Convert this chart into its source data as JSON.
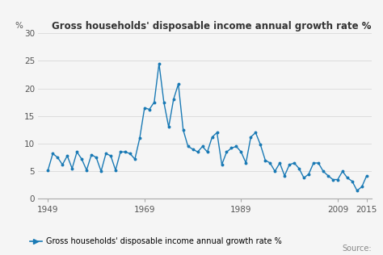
{
  "title": "Gross households' disposable income annual growth rate %",
  "ylabel_top": "%",
  "legend_label": "Gross households' disposable income annual growth rate %",
  "source_text": "Source:",
  "line_color": "#1a7ab5",
  "marker_color": "#1a7ab5",
  "background_color": "#f5f5f5",
  "grid_color": "#dddddd",
  "ylim": [
    0,
    30
  ],
  "yticks": [
    0,
    5,
    10,
    15,
    20,
    25,
    30
  ],
  "xticks": [
    1949,
    1969,
    1989,
    2009,
    2015
  ],
  "years": [
    1949,
    1950,
    1951,
    1952,
    1953,
    1954,
    1955,
    1956,
    1957,
    1958,
    1959,
    1960,
    1961,
    1962,
    1963,
    1964,
    1965,
    1966,
    1967,
    1968,
    1969,
    1970,
    1971,
    1972,
    1973,
    1974,
    1975,
    1976,
    1977,
    1978,
    1979,
    1980,
    1981,
    1982,
    1983,
    1984,
    1985,
    1986,
    1987,
    1988,
    1989,
    1990,
    1991,
    1992,
    1993,
    1994,
    1995,
    1996,
    1997,
    1998,
    1999,
    2000,
    2001,
    2002,
    2003,
    2004,
    2005,
    2006,
    2007,
    2008,
    2009,
    2010,
    2011,
    2012,
    2013,
    2014,
    2015
  ],
  "values": [
    5.2,
    8.2,
    7.5,
    6.2,
    7.8,
    5.5,
    8.5,
    7.2,
    5.2,
    8.0,
    7.5,
    5.0,
    8.2,
    7.8,
    5.2,
    8.5,
    8.5,
    8.2,
    7.2,
    11.0,
    16.5,
    16.2,
    17.5,
    24.5,
    17.5,
    13.0,
    18.0,
    20.8,
    12.5,
    9.5,
    9.0,
    8.5,
    9.5,
    8.5,
    11.2,
    12.0,
    6.2,
    8.5,
    9.2,
    9.5,
    8.5,
    6.5,
    11.2,
    12.0,
    9.8,
    7.0,
    6.5,
    5.0,
    6.5,
    4.2,
    6.2,
    6.5,
    5.5,
    3.8,
    4.5,
    6.5,
    6.5,
    5.0,
    4.2,
    3.5,
    3.5,
    5.0,
    3.8,
    3.2,
    1.5,
    2.2,
    4.2
  ]
}
